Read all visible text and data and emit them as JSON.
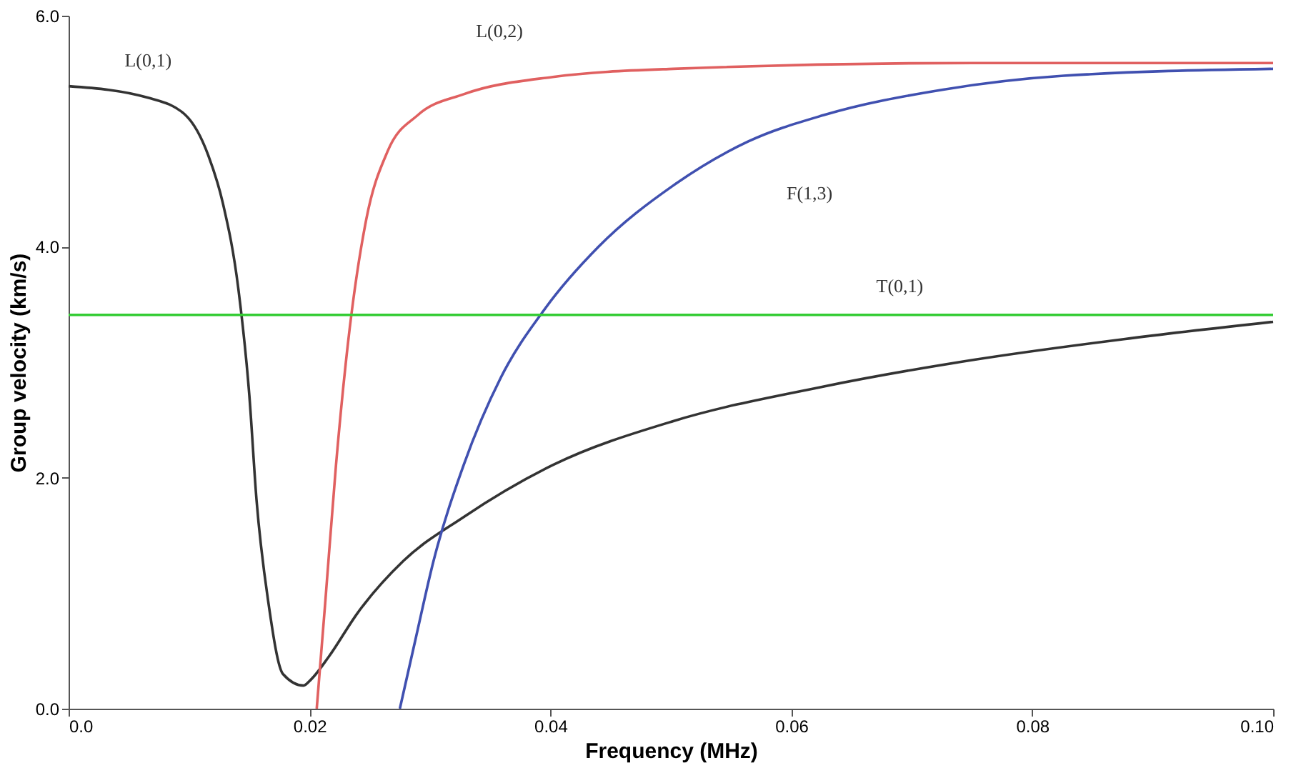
{
  "chart_data": {
    "type": "line",
    "xlabel": "Frequency (MHz)",
    "ylabel": "Group velocity (km/s)",
    "xlim": [
      0,
      0.1
    ],
    "ylim": [
      0,
      6
    ],
    "xticks": [
      {
        "value": 0,
        "label": "0.0"
      },
      0.02,
      0.04,
      0.06,
      0.08,
      {
        "value": 0.1,
        "label": "0.10"
      }
    ],
    "yticks": [
      {
        "value": 0,
        "label": "0.0"
      },
      {
        "value": 2,
        "label": "2.0"
      },
      {
        "value": 4,
        "label": "4.0"
      },
      {
        "value": 6,
        "label": "6.0"
      }
    ],
    "grid": false,
    "legend": false,
    "marker": "none",
    "line_style": "solid",
    "series": [
      {
        "name": "L(0,1)",
        "color": "#333333",
        "x": [
          0,
          0.0066,
          0.0097,
          0.0116,
          0.0128,
          0.0141,
          0.015,
          0.0156,
          0.0166,
          0.0178,
          0.0195,
          0.0201,
          0.0216,
          0.024,
          0.0278,
          0.0328,
          0.0402,
          0.0502,
          0.0627,
          0.0751,
          0.0876,
          0.1
        ],
        "values": [
          5.39,
          5.29,
          5.14,
          4.79,
          4.38,
          3.63,
          2.72,
          1.81,
          0.91,
          0.3,
          0.2,
          0.25,
          0.45,
          0.83,
          1.28,
          1.66,
          2.11,
          2.49,
          2.79,
          3.02,
          3.2,
          3.35
        ]
      },
      {
        "name": "L(0,2)",
        "color": "#e06060",
        "x": [
          0.0206,
          0.0213,
          0.0222,
          0.0232,
          0.0247,
          0.0265,
          0.029,
          0.0328,
          0.0402,
          0.0502,
          0.0751,
          0.1
        ],
        "values": [
          0,
          0.91,
          2.11,
          3.17,
          4.23,
          4.83,
          5.14,
          5.32,
          5.47,
          5.54,
          5.59,
          5.59
        ]
      },
      {
        "name": "F(1,3)",
        "color": "#4050b0",
        "x": [
          0.0275,
          0.0288,
          0.0303,
          0.0328,
          0.0359,
          0.0396,
          0.044,
          0.0502,
          0.0564,
          0.0627,
          0.0726,
          0.0826,
          0.1
        ],
        "values": [
          0,
          0.6,
          1.28,
          2.11,
          2.87,
          3.47,
          4.0,
          4.53,
          4.91,
          5.14,
          5.36,
          5.48,
          5.54
        ]
      },
      {
        "name": "T(0,1)",
        "color": "#33cc33",
        "x": [
          0,
          0.069,
          0.1
        ],
        "values": [
          3.41,
          3.41,
          3.41
        ]
      }
    ]
  }
}
